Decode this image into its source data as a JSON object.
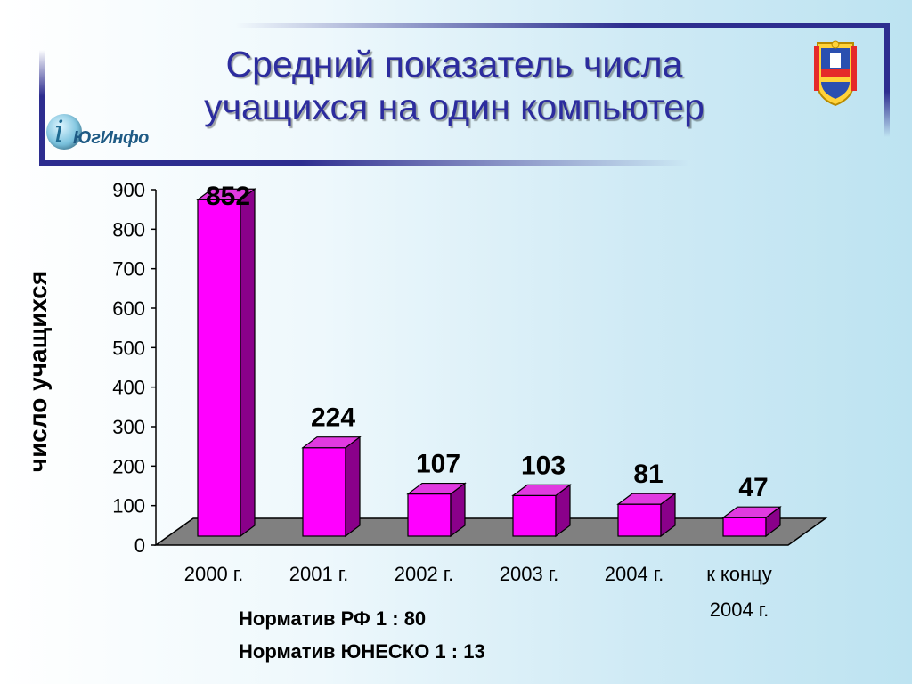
{
  "slide": {
    "title_line1": "Средний показатель числа",
    "title_line2": "учащихся на один компьютер",
    "logo_text": "ЮгИнфо",
    "notes": [
      "Норматив РФ 1 : 80",
      "Норматив ЮНЕСКО 1 : 13"
    ],
    "colors": {
      "title": "#2c2c9e",
      "frame": "#2d2d8f",
      "bar_front": "#ff00ff",
      "bar_top": "#e03ae0",
      "bar_side": "#8a008a",
      "floor": "#808080"
    }
  },
  "chart_data": {
    "type": "bar",
    "categories": [
      "2000 г.",
      "2001 г.",
      "2002 г.",
      "2003 г.",
      "2004 г.",
      "к концу 2004 г."
    ],
    "values": [
      852,
      224,
      107,
      103,
      81,
      47
    ],
    "data_labels": [
      "852",
      "224",
      "107",
      "103",
      "81",
      "47"
    ],
    "ylabel": "число учащихся",
    "xlabel": "",
    "ylim": [
      0,
      900
    ],
    "yticks": [
      0,
      100,
      200,
      300,
      400,
      500,
      600,
      700,
      800,
      900
    ],
    "grid": false,
    "legend": "none",
    "style": "3d-column"
  }
}
